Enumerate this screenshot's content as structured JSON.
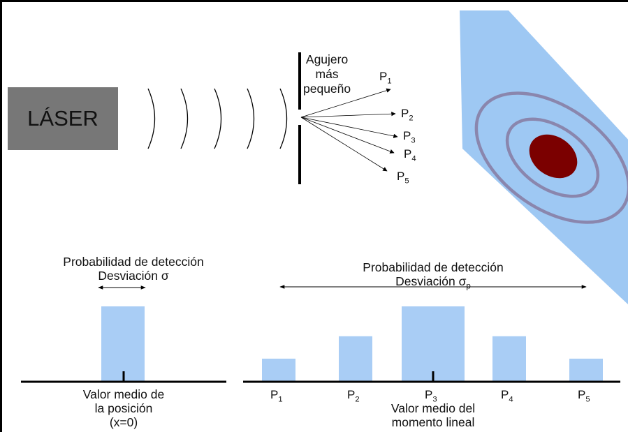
{
  "laser": {
    "label": "LÁSER"
  },
  "slit": {
    "line1": "Agujero",
    "line2": "más",
    "line3": "pequeño"
  },
  "rays": [
    {
      "p": "P",
      "sub": "1"
    },
    {
      "p": "P",
      "sub": "2"
    },
    {
      "p": "P",
      "sub": "3"
    },
    {
      "p": "P",
      "sub": "4"
    },
    {
      "p": "P",
      "sub": "5"
    }
  ],
  "position_panel": {
    "title1": "Probabilidad de detección",
    "title2": "Desviación σ",
    "caption1": "Valor medio de",
    "caption2": "la posición",
    "caption3": "(x=0)"
  },
  "momentum_panel": {
    "title1": "Probabilidad de detección",
    "title2_main": "Desviación σ",
    "title2_sub": "p",
    "caption1": "Valor medio del",
    "caption2": "momento lineal"
  },
  "chart_data": [
    {
      "type": "bar",
      "categories": [
        ""
      ],
      "values": [
        1
      ],
      "title": "Probabilidad de detección",
      "xlabel": "Valor medio de la posición (x=0)"
    },
    {
      "type": "bar",
      "categories": [
        "P1",
        "P2",
        "P3",
        "P4",
        "P5"
      ],
      "values": [
        0.3,
        0.6,
        1.0,
        0.6,
        0.3
      ],
      "title": "Probabilidad de detección",
      "xlabel": "Valor medio del momento lineal"
    }
  ],
  "colors": {
    "bar_fill": "#a9cdf5",
    "laser_box": "#777777",
    "screen_plane": "#9ec8f3",
    "ring": "#8a86ad",
    "center_spot": "#7b0000"
  }
}
